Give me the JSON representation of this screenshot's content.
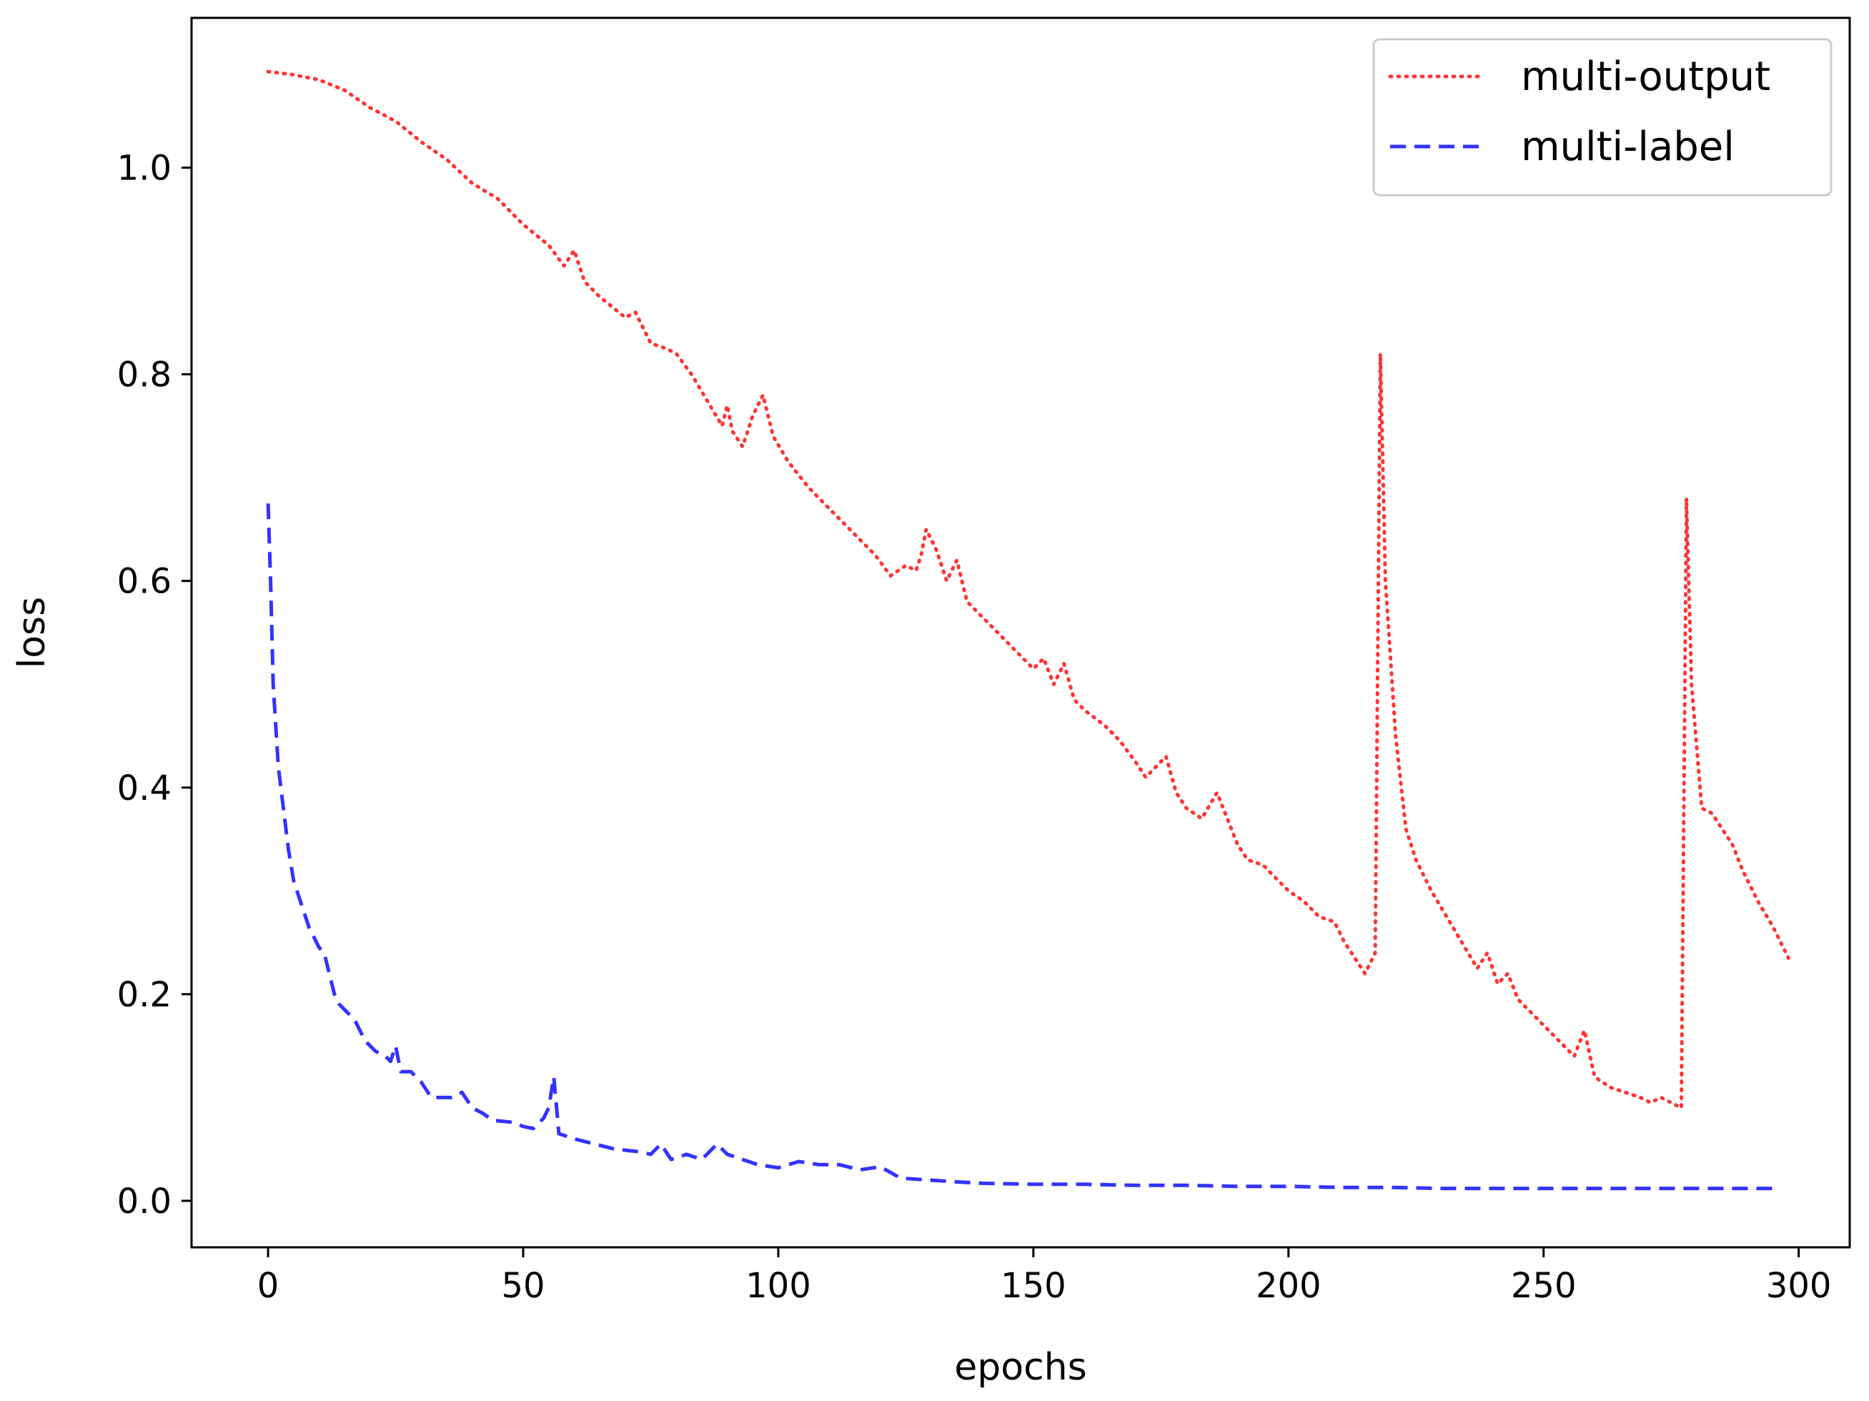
{
  "chart_data": {
    "type": "line",
    "title": "",
    "xlabel": "epochs",
    "ylabel": "loss",
    "xlim": [
      -15,
      310
    ],
    "ylim": [
      -0.045,
      1.145
    ],
    "xticks": [
      0,
      50,
      100,
      150,
      200,
      250,
      300
    ],
    "xtick_labels": [
      "0",
      "50",
      "100",
      "150",
      "200",
      "250",
      "300"
    ],
    "yticks": [
      0.0,
      0.2,
      0.4,
      0.6,
      0.8,
      1.0
    ],
    "ytick_labels": [
      "0.0",
      "0.2",
      "0.4",
      "0.6",
      "0.8",
      "1.0"
    ],
    "grid": false,
    "legend_position": "top-right",
    "series": [
      {
        "name": "multi-output",
        "color": "#ff3333",
        "style": "dotted",
        "points": [
          [
            0,
            1.093
          ],
          [
            5,
            1.09
          ],
          [
            10,
            1.085
          ],
          [
            15,
            1.075
          ],
          [
            20,
            1.058
          ],
          [
            25,
            1.045
          ],
          [
            30,
            1.025
          ],
          [
            35,
            1.008
          ],
          [
            40,
            0.985
          ],
          [
            45,
            0.97
          ],
          [
            50,
            0.945
          ],
          [
            55,
            0.925
          ],
          [
            58,
            0.905
          ],
          [
            60,
            0.92
          ],
          [
            62,
            0.89
          ],
          [
            65,
            0.875
          ],
          [
            70,
            0.855
          ],
          [
            72,
            0.86
          ],
          [
            75,
            0.83
          ],
          [
            78,
            0.825
          ],
          [
            80,
            0.82
          ],
          [
            83,
            0.8
          ],
          [
            86,
            0.775
          ],
          [
            89,
            0.75
          ],
          [
            90,
            0.77
          ],
          [
            91,
            0.745
          ],
          [
            93,
            0.73
          ],
          [
            95,
            0.76
          ],
          [
            97,
            0.78
          ],
          [
            99,
            0.74
          ],
          [
            102,
            0.715
          ],
          [
            106,
            0.69
          ],
          [
            110,
            0.67
          ],
          [
            113,
            0.655
          ],
          [
            116,
            0.64
          ],
          [
            119,
            0.625
          ],
          [
            122,
            0.605
          ],
          [
            125,
            0.615
          ],
          [
            127,
            0.61
          ],
          [
            128,
            0.625
          ],
          [
            129,
            0.65
          ],
          [
            131,
            0.63
          ],
          [
            133,
            0.6
          ],
          [
            135,
            0.62
          ],
          [
            137,
            0.58
          ],
          [
            140,
            0.565
          ],
          [
            144,
            0.545
          ],
          [
            147,
            0.53
          ],
          [
            150,
            0.515
          ],
          [
            152,
            0.525
          ],
          [
            154,
            0.5
          ],
          [
            156,
            0.52
          ],
          [
            158,
            0.485
          ],
          [
            160,
            0.475
          ],
          [
            164,
            0.46
          ],
          [
            167,
            0.445
          ],
          [
            170,
            0.425
          ],
          [
            172,
            0.41
          ],
          [
            174,
            0.42
          ],
          [
            176,
            0.43
          ],
          [
            178,
            0.395
          ],
          [
            180,
            0.38
          ],
          [
            183,
            0.37
          ],
          [
            186,
            0.395
          ],
          [
            188,
            0.37
          ],
          [
            190,
            0.345
          ],
          [
            192,
            0.33
          ],
          [
            195,
            0.325
          ],
          [
            198,
            0.31
          ],
          [
            200,
            0.3
          ],
          [
            203,
            0.29
          ],
          [
            206,
            0.275
          ],
          [
            209,
            0.27
          ],
          [
            211,
            0.25
          ],
          [
            213,
            0.235
          ],
          [
            215,
            0.22
          ],
          [
            217,
            0.24
          ],
          [
            218,
            0.82
          ],
          [
            219,
            0.6
          ],
          [
            221,
            0.45
          ],
          [
            223,
            0.36
          ],
          [
            225,
            0.33
          ],
          [
            228,
            0.3
          ],
          [
            231,
            0.275
          ],
          [
            234,
            0.25
          ],
          [
            237,
            0.225
          ],
          [
            239,
            0.24
          ],
          [
            241,
            0.21
          ],
          [
            243,
            0.22
          ],
          [
            245,
            0.195
          ],
          [
            248,
            0.18
          ],
          [
            251,
            0.165
          ],
          [
            254,
            0.15
          ],
          [
            256,
            0.14
          ],
          [
            258,
            0.165
          ],
          [
            260,
            0.12
          ],
          [
            263,
            0.11
          ],
          [
            266,
            0.105
          ],
          [
            269,
            0.1
          ],
          [
            271,
            0.095
          ],
          [
            273,
            0.1
          ],
          [
            275,
            0.095
          ],
          [
            277,
            0.09
          ],
          [
            278,
            0.68
          ],
          [
            279,
            0.5
          ],
          [
            281,
            0.38
          ],
          [
            283,
            0.375
          ],
          [
            285,
            0.36
          ],
          [
            287,
            0.345
          ],
          [
            289,
            0.32
          ],
          [
            292,
            0.29
          ],
          [
            295,
            0.265
          ],
          [
            298,
            0.235
          ]
        ]
      },
      {
        "name": "multi-label",
        "color": "#3333ff",
        "style": "dashed",
        "points": [
          [
            0,
            0.675
          ],
          [
            0.5,
            0.6
          ],
          [
            1,
            0.5
          ],
          [
            2,
            0.42
          ],
          [
            3,
            0.38
          ],
          [
            4,
            0.34
          ],
          [
            5,
            0.31
          ],
          [
            6,
            0.295
          ],
          [
            7,
            0.28
          ],
          [
            8,
            0.265
          ],
          [
            9,
            0.255
          ],
          [
            10,
            0.245
          ],
          [
            11,
            0.24
          ],
          [
            12,
            0.22
          ],
          [
            13,
            0.2
          ],
          [
            14,
            0.19
          ],
          [
            15,
            0.185
          ],
          [
            17,
            0.175
          ],
          [
            19,
            0.155
          ],
          [
            21,
            0.145
          ],
          [
            23,
            0.14
          ],
          [
            24,
            0.135
          ],
          [
            25,
            0.15
          ],
          [
            26,
            0.125
          ],
          [
            28,
            0.125
          ],
          [
            30,
            0.115
          ],
          [
            32,
            0.1
          ],
          [
            34,
            0.1
          ],
          [
            36,
            0.1
          ],
          [
            38,
            0.105
          ],
          [
            40,
            0.09
          ],
          [
            42,
            0.085
          ],
          [
            44,
            0.078
          ],
          [
            46,
            0.077
          ],
          [
            48,
            0.076
          ],
          [
            50,
            0.072
          ],
          [
            52,
            0.07
          ],
          [
            54,
            0.08
          ],
          [
            55,
            0.09
          ],
          [
            56,
            0.12
          ],
          [
            57,
            0.065
          ],
          [
            60,
            0.06
          ],
          [
            64,
            0.055
          ],
          [
            68,
            0.05
          ],
          [
            72,
            0.048
          ],
          [
            75,
            0.045
          ],
          [
            77,
            0.055
          ],
          [
            79,
            0.04
          ],
          [
            82,
            0.045
          ],
          [
            85,
            0.04
          ],
          [
            88,
            0.055
          ],
          [
            90,
            0.045
          ],
          [
            93,
            0.04
          ],
          [
            96,
            0.035
          ],
          [
            100,
            0.032
          ],
          [
            104,
            0.038
          ],
          [
            108,
            0.035
          ],
          [
            112,
            0.035
          ],
          [
            116,
            0.03
          ],
          [
            120,
            0.033
          ],
          [
            124,
            0.022
          ],
          [
            130,
            0.02
          ],
          [
            136,
            0.018
          ],
          [
            140,
            0.017
          ],
          [
            150,
            0.016
          ],
          [
            160,
            0.016
          ],
          [
            170,
            0.015
          ],
          [
            180,
            0.015
          ],
          [
            190,
            0.014
          ],
          [
            200,
            0.014
          ],
          [
            210,
            0.013
          ],
          [
            220,
            0.013
          ],
          [
            230,
            0.012
          ],
          [
            240,
            0.012
          ],
          [
            250,
            0.012
          ],
          [
            260,
            0.012
          ],
          [
            270,
            0.012
          ],
          [
            280,
            0.012
          ],
          [
            290,
            0.012
          ],
          [
            296,
            0.012
          ]
        ]
      }
    ]
  }
}
